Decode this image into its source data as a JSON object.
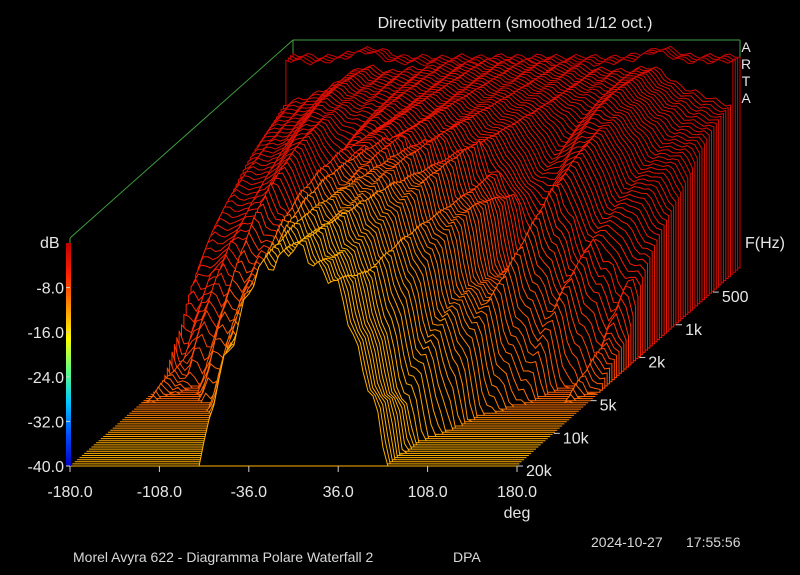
{
  "chart_data": {
    "type": "waterfall",
    "title": "Directivity pattern (smoothed 1/12 oct.)",
    "x": {
      "label": "deg",
      "range": [
        -180,
        180
      ],
      "ticks": [
        "-180.0",
        "-108.0",
        "-36.0",
        "36.0",
        "108.0",
        "180.0"
      ]
    },
    "y": {
      "label": "dB",
      "range": [
        -40,
        0
      ],
      "ticks": [
        "-8.0",
        "-16.0",
        "-24.0",
        "-32.0",
        "-40.0"
      ]
    },
    "depth": {
      "label": "F(Hz)",
      "scale": "log",
      "range_hz": [
        300,
        20000
      ],
      "ticks": [
        "500",
        "1k",
        "2k",
        "5k",
        "10k",
        "20k"
      ]
    },
    "colormap": [
      "#0000c8",
      "#0050ff",
      "#00c8ff",
      "#60ff80",
      "#ffff00",
      "#ff9000",
      "#ff2000",
      "#c00000"
    ],
    "peak_db": 0,
    "grid": false
  },
  "brand": [
    "A",
    "R",
    "T",
    "A"
  ],
  "footer": {
    "description": "Morel Avyra 622 - Diagramma Polare Waterfall 2",
    "mode": "DPA",
    "date": "2024-10-27",
    "time": "17:55:56"
  }
}
